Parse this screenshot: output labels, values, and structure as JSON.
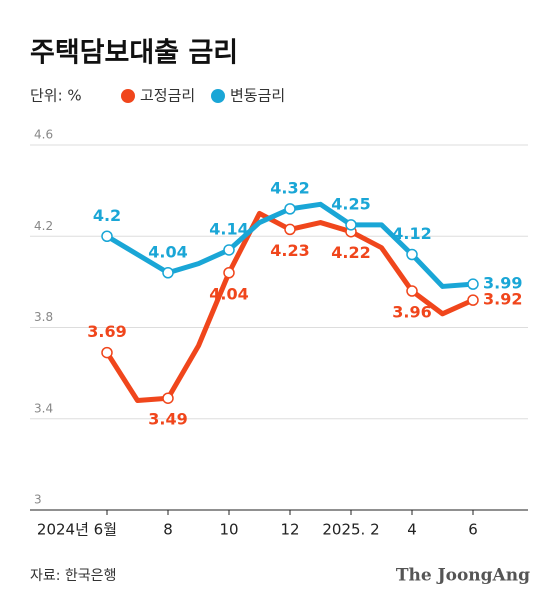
{
  "chart_data": {
    "type": "line",
    "title": "주택담보대출 금리",
    "unit": "단위: %",
    "source": "자료: 한국은행",
    "brand": "The JoongAng",
    "categories": [
      "2024년 6월",
      null,
      "8",
      null,
      "10",
      null,
      "12",
      null,
      "2025. 2",
      null,
      "4",
      null,
      "6"
    ],
    "series": [
      {
        "name": "고정금리",
        "color": "#f0461c",
        "values": [
          3.69,
          3.48,
          3.49,
          3.72,
          4.04,
          4.3,
          4.23,
          4.26,
          4.22,
          4.15,
          3.96,
          3.86,
          3.92
        ],
        "value_labels": [
          "3.69",
          null,
          "3.49",
          null,
          "4.04",
          null,
          "4.23",
          null,
          "4.22",
          null,
          "3.96",
          null,
          "3.92"
        ]
      },
      {
        "name": "변동금리",
        "color": "#1aa6d6",
        "values": [
          4.2,
          4.12,
          4.04,
          4.08,
          4.14,
          4.26,
          4.32,
          4.34,
          4.25,
          4.25,
          4.12,
          3.98,
          3.99
        ],
        "value_labels": [
          "4.2",
          null,
          "4.04",
          null,
          "4.14",
          null,
          "4.32",
          null,
          "4.25",
          null,
          "4.12",
          null,
          "3.99"
        ]
      }
    ],
    "ylim": [
      3.0,
      4.6
    ],
    "yticks": [
      3.0,
      3.4,
      3.8,
      4.2,
      4.6
    ],
    "grid": true
  }
}
